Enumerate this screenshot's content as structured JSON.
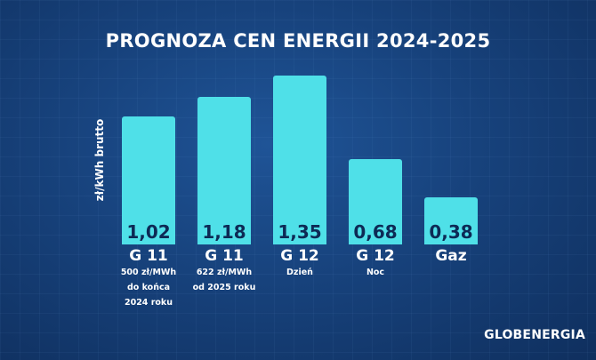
{
  "chart_data": {
    "type": "bar",
    "title": "PROGNOZA CEN ENERGII 2024-2025",
    "ylabel": "zł/kWh brutto",
    "xlabel": "",
    "ylim": [
      0,
      1.35
    ],
    "grid": false,
    "categories": [
      "G 11",
      "G 11",
      "G 12",
      "G 12",
      "Gaz"
    ],
    "subcategories": [
      "500 zł/MWh\ndo końca\n2024 roku",
      "622 zł/MWh\nod 2025 roku",
      "Dzień",
      "Noc",
      ""
    ],
    "values": [
      1.02,
      1.18,
      1.35,
      0.68,
      0.38
    ],
    "value_labels": [
      "1,02",
      "1,18",
      "1,35",
      "0,68",
      "0,38"
    ],
    "bar_color": "#4fe0e8",
    "value_label_color": "#0d2a55"
  },
  "branding": {
    "logo_text": "GLOBENERGIA"
  }
}
